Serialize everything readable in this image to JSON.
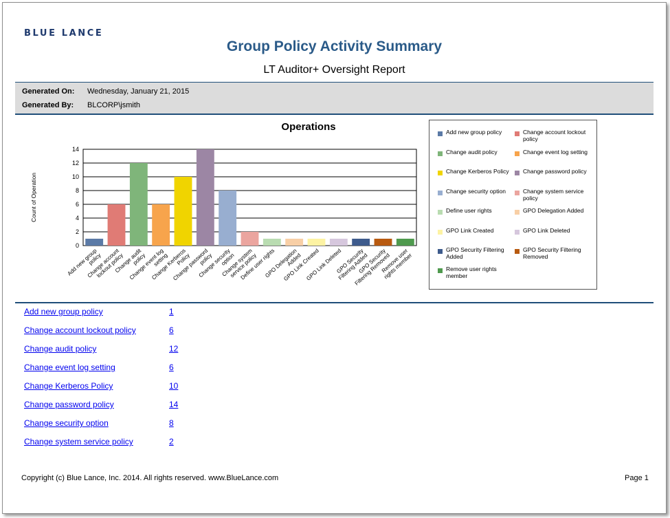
{
  "header": {
    "logo": "BLUE LANCE",
    "title": "Group Policy Activity Summary",
    "subtitle": "LT Auditor+ Oversight Report"
  },
  "info": {
    "generated_on_label": "Generated On:",
    "generated_on": "Wednesday, January 21, 2015",
    "generated_by_label": "Generated By:",
    "generated_by": "BLCORP\\jsmith"
  },
  "chart_data": {
    "type": "bar",
    "title": "Operations",
    "ylabel": "Count of Operation",
    "xlabel": "",
    "ylim": [
      0,
      14
    ],
    "yticks": [
      0,
      2,
      4,
      6,
      8,
      10,
      12,
      14
    ],
    "grid": true,
    "legend": "right",
    "categories": [
      "Add new group policy",
      "Change account lockout policy",
      "Change audit policy",
      "Change event log setting",
      "Change Kerberos Policy",
      "Change password policy",
      "Change security option",
      "Change system service policy",
      "Define user rights",
      "GPO Delegation Added",
      "GPO Link Created",
      "GPO Link Deleted",
      "GPO Security Filtering Added",
      "GPO Security Filtering Removed",
      "Remove user rights member"
    ],
    "tick_labels": [
      [
        "Add new group",
        "policy"
      ],
      [
        "Change account",
        "lockout policy"
      ],
      [
        "Change audit",
        "policy"
      ],
      [
        "Change event log",
        "setting"
      ],
      [
        "Change Kerberos",
        "Policy"
      ],
      [
        "Change password",
        "policy"
      ],
      [
        "Change security",
        "option"
      ],
      [
        "Change system",
        "service policy"
      ],
      [
        "Define user rights"
      ],
      [
        "GPO Delegation",
        "Added"
      ],
      [
        "GPO Link Created"
      ],
      [
        "GPO Link Deleted"
      ],
      [
        "GPO Security",
        "Filtering Added"
      ],
      [
        "GPO Security",
        "Filtering Removed"
      ],
      [
        "Remove user",
        "rights member"
      ]
    ],
    "values": [
      1,
      6,
      12,
      6,
      10,
      14,
      8,
      2,
      1,
      1,
      1,
      1,
      1,
      1,
      1
    ],
    "colors": [
      "#5b7aa6",
      "#e07b75",
      "#7fb57a",
      "#f7a44c",
      "#f0d400",
      "#9c86a4",
      "#98aed0",
      "#eba59f",
      "#b9dcb1",
      "#f8cfa6",
      "#fdf3a3",
      "#d6c7dd",
      "#3e5b8c",
      "#b85a10",
      "#4f9a4e"
    ]
  },
  "legend_items": [
    {
      "label": "Add new group policy",
      "color": "#5b7aa6"
    },
    {
      "label": "Change account lockout policy",
      "color": "#e07b75"
    },
    {
      "label": "Change audit policy",
      "color": "#7fb57a"
    },
    {
      "label": "Change event log setting",
      "color": "#f7a44c"
    },
    {
      "label": "Change Kerberos Policy",
      "color": "#f0d400"
    },
    {
      "label": "Change password policy",
      "color": "#9c86a4"
    },
    {
      "label": "Change security option",
      "color": "#98aed0"
    },
    {
      "label": "Change system service policy",
      "color": "#eba59f"
    },
    {
      "label": "Define user rights",
      "color": "#b9dcb1"
    },
    {
      "label": "GPO Delegation Added",
      "color": "#f8cfa6"
    },
    {
      "label": "GPO Link Created",
      "color": "#fdf3a3"
    },
    {
      "label": "GPO Link Deleted",
      "color": "#d6c7dd"
    },
    {
      "label": "GPO Security Filtering Added",
      "color": "#3e5b8c"
    },
    {
      "label": "GPO Security Filtering Removed",
      "color": "#b85a10"
    },
    {
      "label": "Remove user rights member",
      "color": "#4f9a4e"
    }
  ],
  "list": [
    {
      "label": "Add new group policy",
      "count": "1"
    },
    {
      "label": "Change account lockout policy",
      "count": "6"
    },
    {
      "label": "Change audit policy",
      "count": "12"
    },
    {
      "label": "Change event log setting",
      "count": "6"
    },
    {
      "label": "Change Kerberos Policy",
      "count": "10"
    },
    {
      "label": "Change password policy",
      "count": "14"
    },
    {
      "label": "Change security option",
      "count": "8"
    },
    {
      "label": "Change system service policy",
      "count": "2"
    }
  ],
  "footer": {
    "copyright": "Copyright (c) Blue Lance, Inc. 2014. All rights reserved. www.BlueLance.com",
    "page": "Page 1"
  }
}
